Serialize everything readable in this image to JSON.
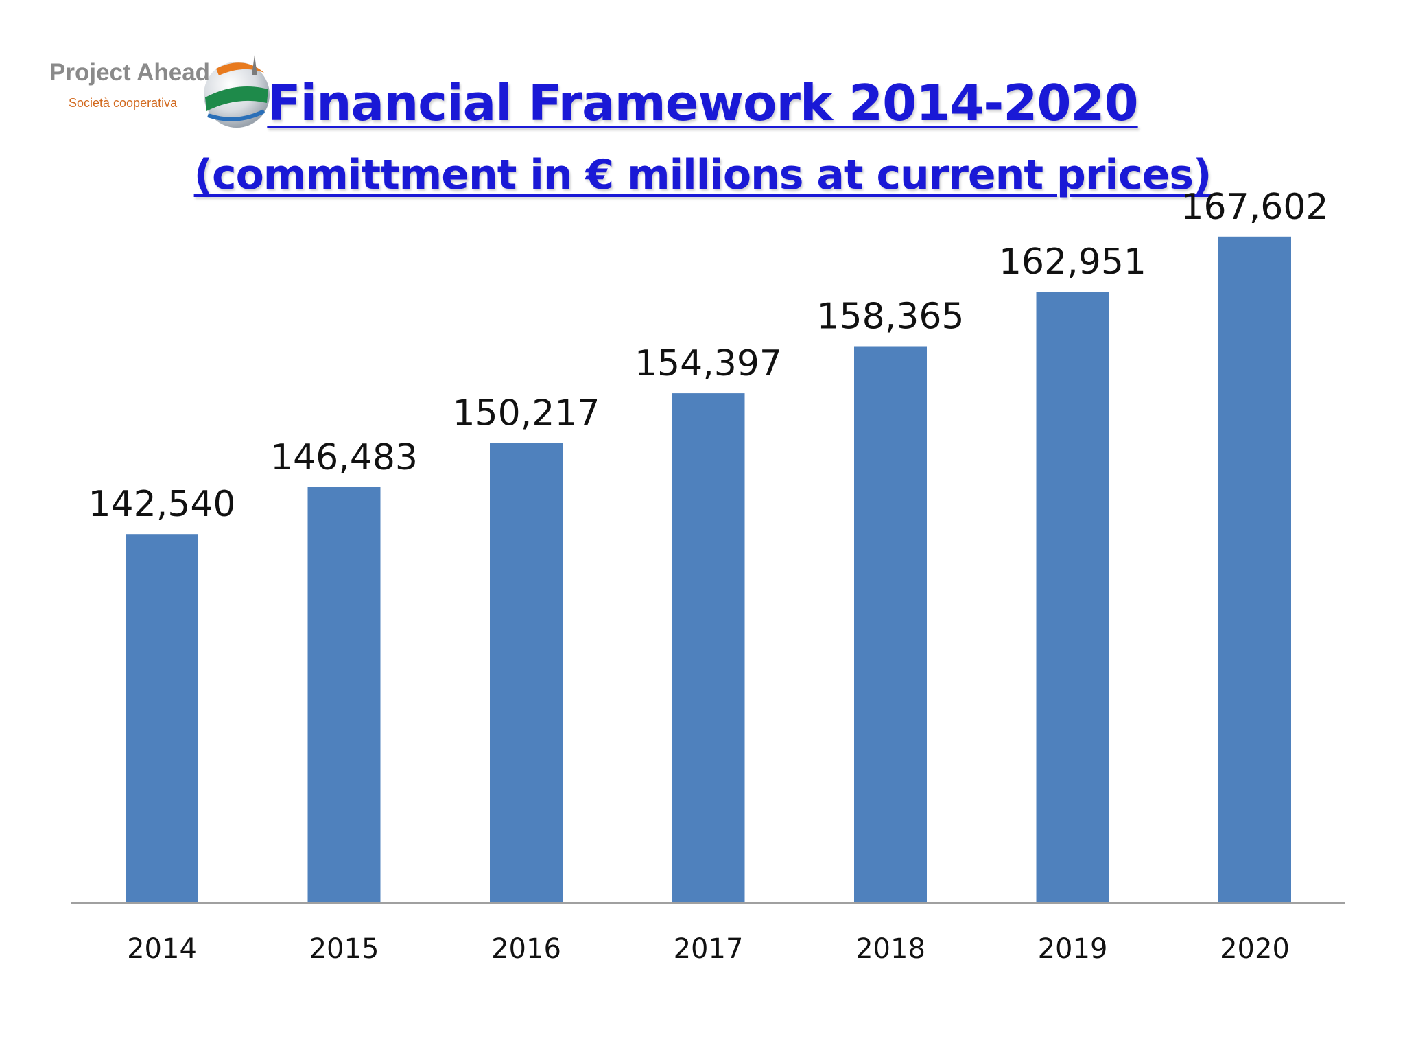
{
  "logo": {
    "name": "Project Ahead",
    "subtitle": "Società cooperativa"
  },
  "colors": {
    "title": "#1a19d6",
    "bar": "#4f81bd",
    "axis": "#a0a0a0"
  },
  "chart_data": {
    "type": "bar",
    "title": "Financial Framework 2014-2020",
    "subtitle": "(committment in € millions at current prices)",
    "categories": [
      "2014",
      "2015",
      "2016",
      "2017",
      "2018",
      "2019",
      "2020"
    ],
    "values": [
      142540,
      146483,
      150217,
      154397,
      158365,
      162951,
      167602
    ],
    "value_labels": [
      "142,540",
      "146,483",
      "150,217",
      "154,397",
      "158,365",
      "162,951",
      "167,602"
    ],
    "ylim": [
      111500,
      171000
    ],
    "grid": false,
    "legend": "none"
  }
}
